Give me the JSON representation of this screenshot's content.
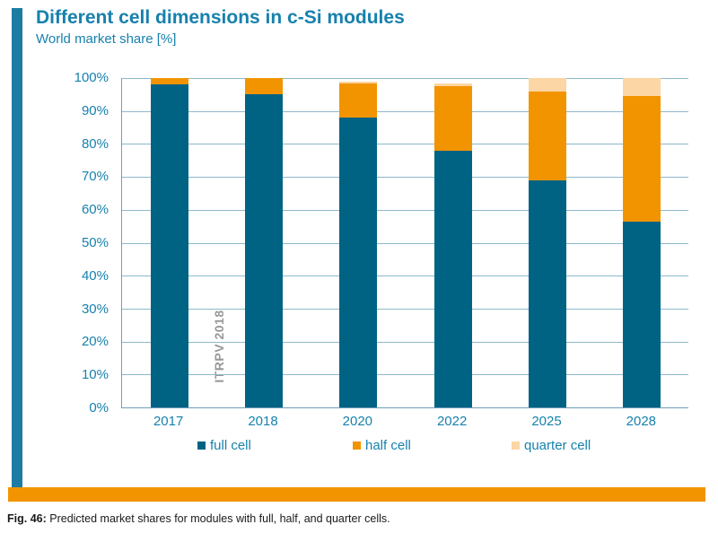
{
  "header": {
    "title": "Different cell dimensions in c-Si modules",
    "subtitle": "World market share [%]"
  },
  "chart_data": {
    "type": "bar",
    "subtype": "stacked-vertical",
    "title": "Different cell dimensions in c-Si modules",
    "ylabel": "World market share [%]",
    "categories": [
      "2017",
      "2018",
      "2020",
      "2022",
      "2025",
      "2028"
    ],
    "series": [
      {
        "name": "full cell",
        "color": "#016384",
        "values": [
          98,
          95,
          88,
          78,
          69,
          56.5
        ]
      },
      {
        "name": "half cell",
        "color": "#f29400",
        "values": [
          2,
          5,
          10.5,
          19.5,
          27,
          38
        ]
      },
      {
        "name": "quarter cell",
        "color": "#fcd6a4",
        "values": [
          0,
          0,
          0.5,
          1,
          4,
          5.5
        ]
      }
    ],
    "ylim": [
      0,
      100
    ],
    "y_ticks": [
      "0%",
      "10%",
      "20%",
      "30%",
      "40%",
      "50%",
      "60%",
      "70%",
      "80%",
      "90%",
      "100%"
    ],
    "grid": true,
    "legend_position": "bottom",
    "watermark": "ITRPV 2018"
  },
  "footer": {
    "fig_label": "Fig. 46:",
    "caption": "Predicted market shares for modules with full, half, and quarter cells."
  },
  "colors": {
    "accent_bar": "#1d7ca3",
    "bottom_bar": "#f29400",
    "text_blue": "#1781ad",
    "grid_line": "#8db8cb",
    "axis_line": "#6d9fb9",
    "watermark_gray": "#989898"
  }
}
